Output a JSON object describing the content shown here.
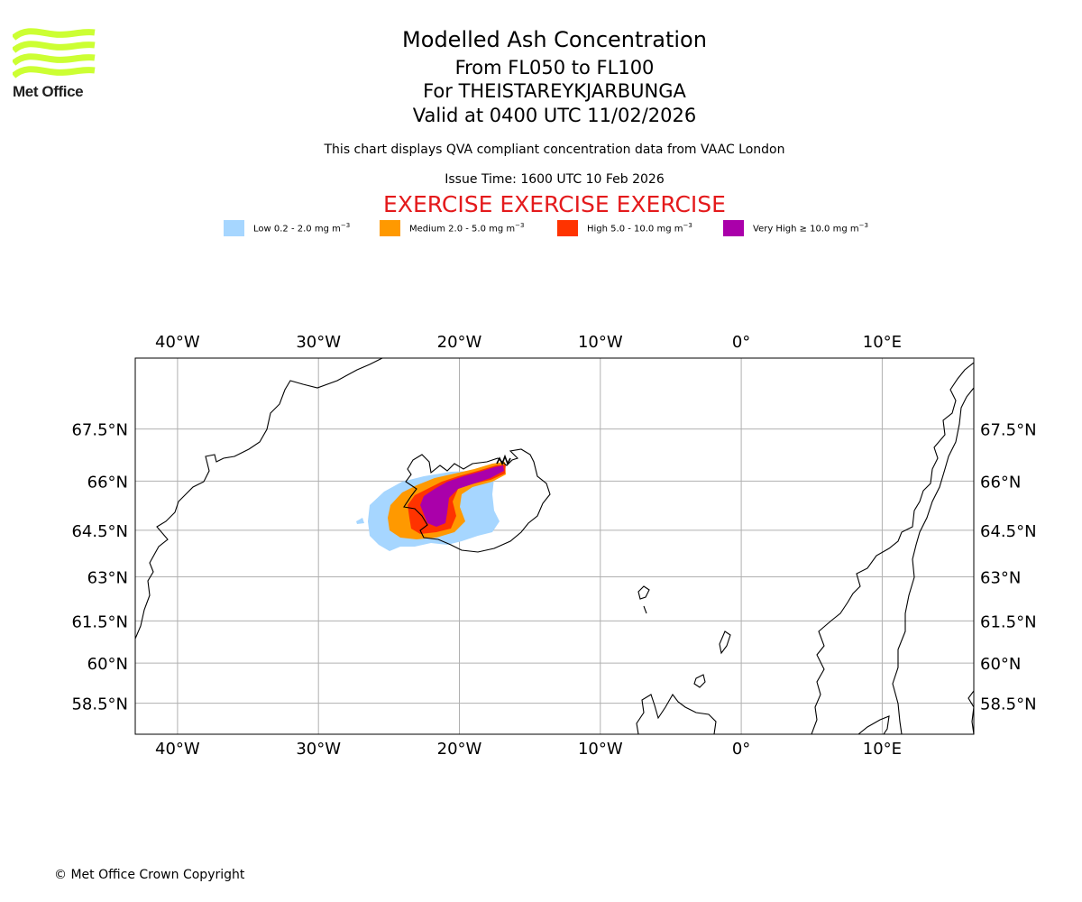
{
  "header": {
    "title": "Modelled Ash Concentration",
    "levels": "From FL050 to FL100",
    "volcano": "For THEISTAREYKJARBUNGA",
    "valid": "Valid at 0400 UTC 11/02/2026",
    "note": "This chart displays QVA compliant concentration data from VAAC London",
    "issue": "Issue Time: 1600 UTC 10 Feb 2026",
    "exercise": "EXERCISE EXERCISE EXERCISE"
  },
  "logo": {
    "name": "Met Office",
    "color": "#ccff33"
  },
  "legend": [
    {
      "label": "Low 0.2 - 2.0 mg m",
      "color": "#a6d6ff"
    },
    {
      "label": "Medium 2.0 - 5.0 mg m",
      "color": "#ff9900"
    },
    {
      "label": "High 5.0 - 10.0 mg m",
      "color": "#ff3300"
    },
    {
      "label": "Very High ≥ 10.0 mg m",
      "color": "#aa00aa"
    }
  ],
  "legend_unit_exponent": "−3",
  "map": {
    "lon_range": [
      -43,
      16.5
    ],
    "lat_range": [
      57.3,
      69.4
    ],
    "lon_ticks": [
      {
        "value": -40,
        "label": "40°W"
      },
      {
        "value": -30,
        "label": "30°W"
      },
      {
        "value": -20,
        "label": "20°W"
      },
      {
        "value": -10,
        "label": "10°W"
      },
      {
        "value": 0,
        "label": "0°"
      },
      {
        "value": 10,
        "label": "10°E"
      }
    ],
    "lat_ticks": [
      {
        "value": 67.5,
        "label": "67.5°N"
      },
      {
        "value": 66,
        "label": "66°N"
      },
      {
        "value": 64.5,
        "label": "64.5°N"
      },
      {
        "value": 63,
        "label": "63°N"
      },
      {
        "value": 61.5,
        "label": "61.5°N"
      },
      {
        "value": 60,
        "label": "60°N"
      },
      {
        "value": 58.5,
        "label": "58.5°N"
      }
    ]
  },
  "footer": {
    "copyright": "© Met Office Crown Copyright"
  }
}
